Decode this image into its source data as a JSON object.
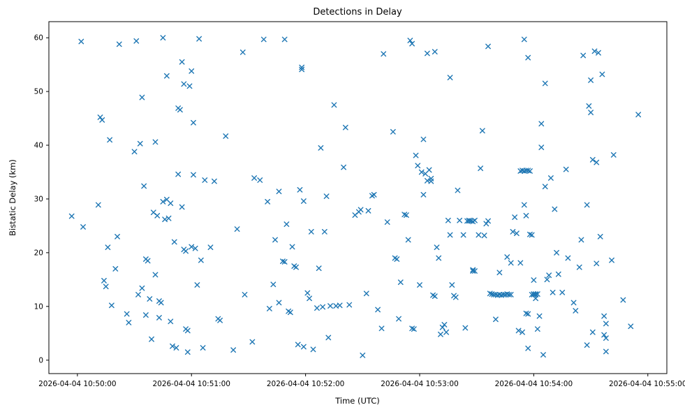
{
  "chart_data": {
    "type": "scatter",
    "title": "Detections in Delay",
    "xlabel": "Time (UTC)",
    "ylabel": "Bistatic Delay (km)",
    "marker": "x",
    "marker_color": "#1f77b4",
    "grid": false,
    "legend": null,
    "x_unit": "seconds after 2026-04-04 10:50:00 UTC",
    "xlim_seconds": [
      -15,
      310
    ],
    "ylim": [
      -2.5,
      63
    ],
    "x_tick_seconds": [
      0,
      60,
      120,
      180,
      240,
      300
    ],
    "x_tick_labels": [
      "2026-04-04 10:50:00",
      "2026-04-04 10:51:00",
      "2026-04-04 10:52:00",
      "2026-04-04 10:53:00",
      "2026-04-04 10:54:00",
      "2026-04-04 10:55:00"
    ],
    "y_ticks": [
      0,
      10,
      20,
      30,
      40,
      50,
      60
    ],
    "points": [
      [
        -3,
        26.8
      ],
      [
        2,
        59.3
      ],
      [
        3,
        24.8
      ],
      [
        11,
        28.9
      ],
      [
        12,
        45.2
      ],
      [
        13,
        44.7
      ],
      [
        14,
        14.8
      ],
      [
        15,
        13.7
      ],
      [
        16,
        21.0
      ],
      [
        17,
        41.0
      ],
      [
        18,
        10.2
      ],
      [
        20,
        17.0
      ],
      [
        21,
        23.0
      ],
      [
        22,
        58.8
      ],
      [
        26,
        8.6
      ],
      [
        27,
        7.0
      ],
      [
        30,
        38.8
      ],
      [
        31,
        59.4
      ],
      [
        32,
        12.2
      ],
      [
        33,
        40.3
      ],
      [
        34,
        13.4
      ],
      [
        34,
        48.9
      ],
      [
        35,
        32.4
      ],
      [
        36,
        18.8
      ],
      [
        37,
        18.5
      ],
      [
        36,
        8.4
      ],
      [
        38,
        11.4
      ],
      [
        39,
        3.9
      ],
      [
        40,
        27.5
      ],
      [
        41,
        40.6
      ],
      [
        41,
        15.9
      ],
      [
        42,
        26.9
      ],
      [
        43,
        11.0
      ],
      [
        43,
        7.9
      ],
      [
        44,
        10.7
      ],
      [
        45,
        29.5
      ],
      [
        45,
        60.0
      ],
      [
        46,
        26.2
      ],
      [
        47,
        29.9
      ],
      [
        47,
        52.9
      ],
      [
        48,
        26.4
      ],
      [
        49,
        29.2
      ],
      [
        49,
        7.2
      ],
      [
        50,
        2.6
      ],
      [
        51,
        22.0
      ],
      [
        52,
        2.3
      ],
      [
        53,
        34.6
      ],
      [
        53,
        46.9
      ],
      [
        54,
        46.6
      ],
      [
        55,
        55.5
      ],
      [
        55,
        28.5
      ],
      [
        56,
        51.4
      ],
      [
        56,
        20.6
      ],
      [
        57,
        20.3
      ],
      [
        57,
        5.8
      ],
      [
        58,
        5.5
      ],
      [
        58,
        1.5
      ],
      [
        59,
        51.0
      ],
      [
        60,
        53.8
      ],
      [
        60,
        21.1
      ],
      [
        61,
        44.2
      ],
      [
        61,
        34.5
      ],
      [
        62,
        20.8
      ],
      [
        63,
        14.0
      ],
      [
        64,
        59.8
      ],
      [
        65,
        18.6
      ],
      [
        66,
        2.3
      ],
      [
        67,
        33.5
      ],
      [
        70,
        21.0
      ],
      [
        72,
        33.3
      ],
      [
        74,
        7.7
      ],
      [
        75,
        7.4
      ],
      [
        78,
        41.7
      ],
      [
        82,
        1.9
      ],
      [
        84,
        24.4
      ],
      [
        88,
        12.2
      ],
      [
        92,
        3.4
      ],
      [
        87,
        57.3
      ],
      [
        93,
        33.9
      ],
      [
        96,
        33.5
      ],
      [
        98,
        59.7
      ],
      [
        100,
        29.5
      ],
      [
        101,
        9.6
      ],
      [
        103,
        14.1
      ],
      [
        104,
        22.4
      ],
      [
        106,
        31.4
      ],
      [
        106,
        10.7
      ],
      [
        108,
        18.4
      ],
      [
        109,
        18.3
      ],
      [
        109,
        59.7
      ],
      [
        110,
        25.3
      ],
      [
        111,
        9.1
      ],
      [
        112,
        8.9
      ],
      [
        113,
        21.1
      ],
      [
        114,
        17.5
      ],
      [
        115,
        17.3
      ],
      [
        116,
        2.9
      ],
      [
        117,
        31.7
      ],
      [
        118,
        54.5
      ],
      [
        118,
        54.1
      ],
      [
        119,
        29.6
      ],
      [
        119,
        2.5
      ],
      [
        121,
        12.5
      ],
      [
        122,
        11.5
      ],
      [
        123,
        23.9
      ],
      [
        124,
        2.0
      ],
      [
        126,
        9.7
      ],
      [
        127,
        17.1
      ],
      [
        128,
        39.5
      ],
      [
        129,
        9.9
      ],
      [
        130,
        23.9
      ],
      [
        131,
        30.5
      ],
      [
        132,
        4.2
      ],
      [
        133,
        10.1
      ],
      [
        135,
        47.5
      ],
      [
        136,
        10.1
      ],
      [
        138,
        10.2
      ],
      [
        140,
        35.9
      ],
      [
        141,
        43.3
      ],
      [
        143,
        10.3
      ],
      [
        146,
        27.0
      ],
      [
        148,
        27.6
      ],
      [
        149,
        28.0
      ],
      [
        150,
        0.9
      ],
      [
        152,
        12.4
      ],
      [
        153,
        27.8
      ],
      [
        155,
        30.6
      ],
      [
        156,
        30.8
      ],
      [
        158,
        9.4
      ],
      [
        160,
        5.9
      ],
      [
        161,
        57.0
      ],
      [
        163,
        25.7
      ],
      [
        166,
        42.5
      ],
      [
        167,
        19.0
      ],
      [
        168,
        18.8
      ],
      [
        169,
        7.7
      ],
      [
        170,
        14.5
      ],
      [
        172,
        27.1
      ],
      [
        173,
        27.0
      ],
      [
        174,
        22.4
      ],
      [
        176,
        5.9
      ],
      [
        177,
        5.8
      ],
      [
        178,
        38.1
      ],
      [
        179,
        36.2
      ],
      [
        180,
        14.0
      ],
      [
        181,
        35.0
      ],
      [
        182,
        41.1
      ],
      [
        182,
        30.8
      ],
      [
        183,
        34.7
      ],
      [
        175,
        59.5
      ],
      [
        176,
        58.9
      ],
      [
        184,
        33.4
      ],
      [
        185,
        35.4
      ],
      [
        186,
        33.8
      ],
      [
        186,
        33.3
      ],
      [
        187,
        12.1
      ],
      [
        188,
        11.9
      ],
      [
        189,
        21.0
      ],
      [
        190,
        19.0
      ],
      [
        184,
        57.1
      ],
      [
        188,
        57.4
      ],
      [
        191,
        4.8
      ],
      [
        192,
        6.1
      ],
      [
        193,
        6.6
      ],
      [
        194,
        5.2
      ],
      [
        195,
        26.0
      ],
      [
        196,
        23.3
      ],
      [
        197,
        14.0
      ],
      [
        198,
        12.0
      ],
      [
        199,
        11.7
      ],
      [
        200,
        31.6
      ],
      [
        201,
        26.0
      ],
      [
        196,
        52.6
      ],
      [
        203,
        23.3
      ],
      [
        204,
        6.0
      ],
      [
        205,
        25.9
      ],
      [
        206,
        25.9
      ],
      [
        206,
        26.0
      ],
      [
        207,
        25.9
      ],
      [
        208,
        25.8
      ],
      [
        209,
        26.0
      ],
      [
        208,
        16.6
      ],
      [
        208,
        16.8
      ],
      [
        209,
        16.6
      ],
      [
        211,
        23.3
      ],
      [
        212,
        35.7
      ],
      [
        213,
        42.7
      ],
      [
        214,
        23.2
      ],
      [
        215,
        25.4
      ],
      [
        216,
        25.9
      ],
      [
        217,
        12.4
      ],
      [
        218,
        12.3
      ],
      [
        219,
        12.2
      ],
      [
        220,
        12.2
      ],
      [
        221,
        12.1
      ],
      [
        222,
        12.2
      ],
      [
        223,
        12.1
      ],
      [
        224,
        12.2
      ],
      [
        225,
        12.2
      ],
      [
        226,
        12.3
      ],
      [
        227,
        12.2
      ],
      [
        228,
        12.2
      ],
      [
        220,
        7.6
      ],
      [
        222,
        16.3
      ],
      [
        226,
        19.2
      ],
      [
        228,
        18.1
      ],
      [
        230,
        26.6
      ],
      [
        231,
        23.6
      ],
      [
        232,
        5.5
      ],
      [
        216,
        58.4
      ],
      [
        233,
        18.1
      ],
      [
        234,
        5.2
      ],
      [
        229,
        23.9
      ],
      [
        235,
        28.9
      ],
      [
        236,
        26.9
      ],
      [
        237,
        2.2
      ],
      [
        236,
        8.7
      ],
      [
        237,
        8.6
      ],
      [
        233,
        35.2
      ],
      [
        234,
        35.3
      ],
      [
        235,
        35.2
      ],
      [
        236,
        35.3
      ],
      [
        237,
        35.3
      ],
      [
        238,
        35.2
      ],
      [
        239,
        12.2
      ],
      [
        240,
        12.3
      ],
      [
        240,
        12.2
      ],
      [
        241,
        12.3
      ],
      [
        241,
        12.2
      ],
      [
        242,
        12.3
      ],
      [
        238,
        23.4
      ],
      [
        239,
        23.3
      ],
      [
        235,
        59.7
      ],
      [
        237,
        56.3
      ],
      [
        240,
        14.9
      ],
      [
        241,
        11.5
      ],
      [
        242,
        5.8
      ],
      [
        243,
        8.2
      ],
      [
        244,
        44.0
      ],
      [
        244,
        39.6
      ],
      [
        245,
        1.0
      ],
      [
        246,
        51.5
      ],
      [
        246,
        32.3
      ],
      [
        247,
        15.0
      ],
      [
        248,
        15.8
      ],
      [
        249,
        33.9
      ],
      [
        250,
        12.6
      ],
      [
        251,
        28.1
      ],
      [
        252,
        20.0
      ],
      [
        253,
        16.0
      ],
      [
        255,
        12.6
      ],
      [
        257,
        35.5
      ],
      [
        258,
        19.0
      ],
      [
        261,
        10.7
      ],
      [
        262,
        9.2
      ],
      [
        264,
        17.3
      ],
      [
        265,
        22.4
      ],
      [
        266,
        56.7
      ],
      [
        268,
        28.9
      ],
      [
        268,
        2.8
      ],
      [
        269,
        47.3
      ],
      [
        270,
        46.1
      ],
      [
        270,
        52.1
      ],
      [
        271,
        37.3
      ],
      [
        271,
        5.2
      ],
      [
        272,
        57.5
      ],
      [
        273,
        36.8
      ],
      [
        273,
        18.0
      ],
      [
        274,
        57.2
      ],
      [
        275,
        23.0
      ],
      [
        276,
        53.2
      ],
      [
        277,
        4.7
      ],
      [
        277,
        8.2
      ],
      [
        278,
        6.8
      ],
      [
        278,
        4.1
      ],
      [
        278,
        1.6
      ],
      [
        281,
        18.6
      ],
      [
        282,
        38.2
      ],
      [
        287,
        11.2
      ],
      [
        291,
        6.3
      ],
      [
        295,
        45.7
      ]
    ]
  }
}
